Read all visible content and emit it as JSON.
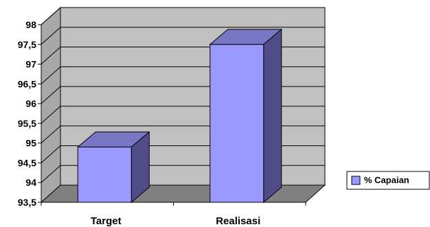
{
  "chart_data": {
    "type": "bar",
    "style": "3d-column",
    "categories": [
      "Target",
      "Realisasi"
    ],
    "series": [
      {
        "name": "% Capaian",
        "values": [
          94.9,
          97.5
        ]
      }
    ],
    "ylim": [
      93.5,
      98
    ],
    "yticks": [
      "93,5",
      "94",
      "94,5",
      "95",
      "95,5",
      "96",
      "96,5",
      "97",
      "97,5",
      "98"
    ],
    "grid": true,
    "legend_position": "right",
    "colors": {
      "bar_front": "#9999FF",
      "bar_side": "#4F4C87",
      "bar_top": "#7777C4",
      "wall_back": "#C0C0C0",
      "wall_side": "#A8A8A8",
      "floor": "#808080"
    }
  }
}
